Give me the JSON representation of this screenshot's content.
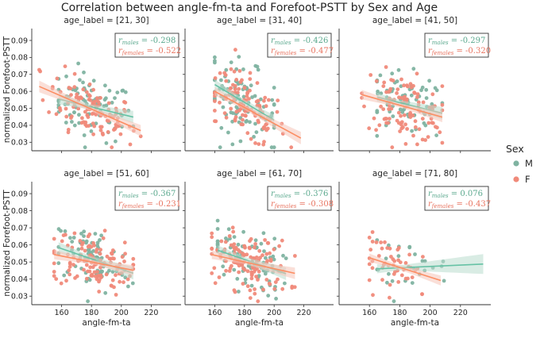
{
  "figure": {
    "title": "Correlation between angle-fm-ta and Forefoot-PSTT by Sex and Age",
    "legend": {
      "title": "Sex",
      "placement": "right",
      "entries": [
        {
          "label": "M",
          "color": "#66c2a5",
          "point_color": "#7fb3a1"
        },
        {
          "label": "F",
          "color": "#fc8d62",
          "point_color": "#f08a7a"
        }
      ]
    }
  },
  "chart_data": {
    "type": "scatter",
    "title": "Correlation between angle-fm-ta and Forefoot-PSTT by Sex and Age",
    "xlabel": "angle-fm-ta",
    "ylabel": "normalized Forefoot-PSTT",
    "xlim": [
      140,
      240
    ],
    "ylim": [
      0.025,
      0.097
    ],
    "xticks": [
      160,
      180,
      200,
      220
    ],
    "yticks": [
      0.03,
      0.04,
      0.05,
      0.06,
      0.07,
      0.08,
      0.09
    ],
    "grid": false,
    "stat_prefix_m": "r",
    "stat_sub_m": "males",
    "stat_prefix_f": "r",
    "stat_sub_f": "females",
    "stat_eq": " = ",
    "panels": [
      {
        "title": "age_label = [21, 30]",
        "r_males": "-0.298",
        "r_females": "-0.522",
        "m": {
          "cx": 180,
          "cy": 0.051,
          "sx": 14,
          "sy": 0.0095,
          "n": 80,
          "xmin": 158,
          "xmax": 208,
          "slope": -0.000213,
          "intercept": 0.0508
        },
        "f": {
          "cx": 180,
          "cy": 0.0495,
          "sx": 15,
          "sy": 0.0085,
          "n": 110,
          "xmin": 145,
          "xmax": 213,
          "slope": -0.000383,
          "intercept": 0.0495
        }
      },
      {
        "title": "age_label = [31, 40]",
        "r_males": "-0.426",
        "r_females": "-0.477",
        "m": {
          "cx": 177,
          "cy": 0.055,
          "sx": 13,
          "sy": 0.011,
          "n": 100,
          "xmin": 160,
          "xmax": 200,
          "slope": -0.000525,
          "intercept": 0.0535
        },
        "f": {
          "cx": 180,
          "cy": 0.0505,
          "sx": 14,
          "sy": 0.0095,
          "n": 110,
          "xmin": 160,
          "xmax": 218,
          "slope": -0.000475,
          "intercept": 0.0505
        }
      },
      {
        "title": "age_label = [41, 50]",
        "r_males": "-0.297",
        "r_females": "-0.320",
        "m": {
          "cx": 185,
          "cy": 0.0535,
          "sx": 13,
          "sy": 0.009,
          "n": 70,
          "xmin": 165,
          "xmax": 208,
          "slope": -0.000222,
          "intercept": 0.0533
        },
        "f": {
          "cx": 183,
          "cy": 0.052,
          "sx": 14,
          "sy": 0.009,
          "n": 110,
          "xmin": 155,
          "xmax": 208,
          "slope": -0.00025,
          "intercept": 0.0518
        }
      },
      {
        "title": "age_label = [51, 60]",
        "r_males": "-0.367",
        "r_females": "-0.231",
        "m": {
          "cx": 180,
          "cy": 0.0515,
          "sx": 13,
          "sy": 0.0095,
          "n": 80,
          "xmin": 158,
          "xmax": 208,
          "slope": -0.0003,
          "intercept": 0.0518
        },
        "f": {
          "cx": 180,
          "cy": 0.0505,
          "sx": 14,
          "sy": 0.0085,
          "n": 120,
          "xmin": 155,
          "xmax": 208,
          "slope": -0.000174,
          "intercept": 0.05
        }
      },
      {
        "title": "age_label = [61, 70]",
        "r_males": "-0.376",
        "r_females": "-0.308",
        "m": {
          "cx": 182,
          "cy": 0.0515,
          "sx": 13,
          "sy": 0.009,
          "n": 90,
          "xmin": 162,
          "xmax": 208,
          "slope": -0.0003,
          "intercept": 0.0515
        },
        "f": {
          "cx": 182,
          "cy": 0.0505,
          "sx": 14,
          "sy": 0.0085,
          "n": 130,
          "xmin": 158,
          "xmax": 214,
          "slope": -0.000196,
          "intercept": 0.05
        }
      },
      {
        "title": "age_label = [71, 80]",
        "r_males": "0.076",
        "r_females": "-0.437",
        "m": {
          "cx": 183,
          "cy": 0.0465,
          "sx": 15,
          "sy": 0.0075,
          "n": 25,
          "xmin": 165,
          "xmax": 235,
          "slope": 4e-05,
          "intercept": 0.0466
        },
        "f": {
          "cx": 180,
          "cy": 0.047,
          "sx": 13,
          "sy": 0.0075,
          "n": 50,
          "xmin": 160,
          "xmax": 207,
          "slope": -0.000283,
          "intercept": 0.0468
        }
      }
    ]
  }
}
